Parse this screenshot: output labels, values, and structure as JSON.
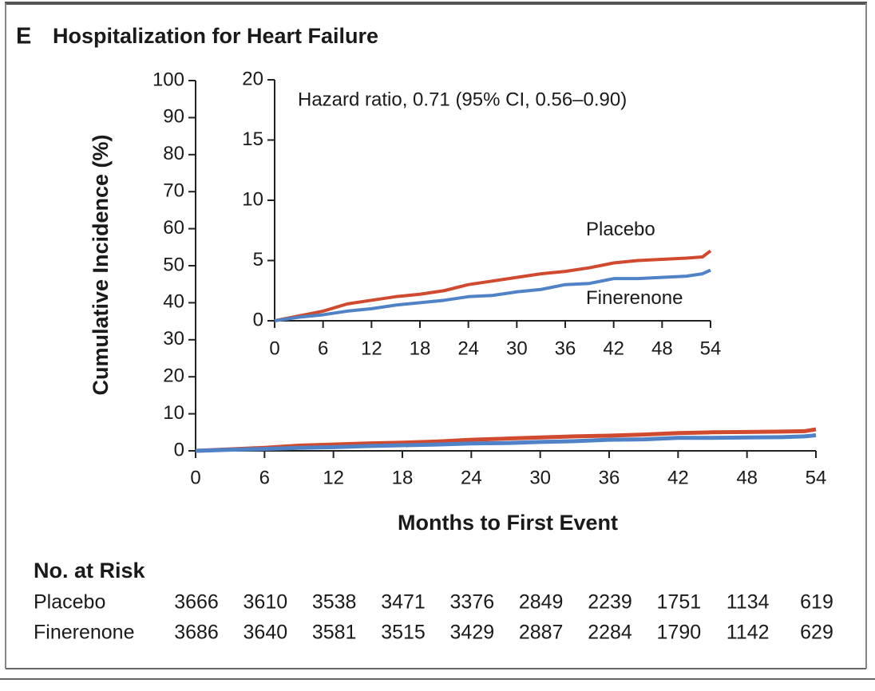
{
  "chart_data": [
    {
      "type": "line",
      "panel_label": "E",
      "title": "Hospitalization for Heart Failure",
      "xlabel": "Months to First Event",
      "ylabel": "Cumulative Incidence (%)",
      "xlim": [
        0,
        54
      ],
      "xticks": [
        0,
        6,
        12,
        18,
        24,
        30,
        36,
        42,
        48,
        54
      ],
      "ylim": [
        0,
        100
      ],
      "yticks": [
        0,
        10,
        20,
        30,
        40,
        50,
        60,
        70,
        80,
        90,
        100
      ],
      "x": [
        0,
        3,
        6,
        9,
        12,
        15,
        18,
        21,
        24,
        27,
        30,
        33,
        36,
        39,
        42,
        45,
        48,
        51,
        53,
        54
      ],
      "series": [
        {
          "color": "#cf4a2e",
          "values": [
            0,
            0.4,
            0.8,
            1.4,
            1.7,
            2.0,
            2.2,
            2.5,
            3.0,
            3.3,
            3.6,
            3.9,
            4.1,
            4.4,
            4.8,
            5.0,
            5.1,
            5.2,
            5.3,
            5.8
          ]
        },
        {
          "color": "#4f82c6",
          "values": [
            0,
            0.3,
            0.5,
            0.8,
            1.0,
            1.3,
            1.5,
            1.7,
            2.0,
            2.1,
            2.4,
            2.6,
            3.0,
            3.1,
            3.5,
            3.5,
            3.6,
            3.7,
            3.9,
            4.2
          ]
        }
      ]
    },
    {
      "type": "line",
      "annotation": "Hazard ratio, 0.71 (95% CI, 0.56–0.90)",
      "xlim": [
        0,
        54
      ],
      "xticks": [
        0,
        6,
        12,
        18,
        24,
        30,
        36,
        42,
        48,
        54
      ],
      "ylim": [
        0,
        20
      ],
      "yticks": [
        0,
        5,
        10,
        15,
        20
      ],
      "x": [
        0,
        3,
        6,
        9,
        12,
        15,
        18,
        21,
        24,
        27,
        30,
        33,
        36,
        39,
        42,
        45,
        48,
        51,
        53,
        54
      ],
      "series": [
        {
          "name": "Placebo",
          "color": "#cf4a2e",
          "values": [
            0,
            0.4,
            0.8,
            1.4,
            1.7,
            2.0,
            2.2,
            2.5,
            3.0,
            3.3,
            3.6,
            3.9,
            4.1,
            4.4,
            4.8,
            5.0,
            5.1,
            5.2,
            5.3,
            5.8
          ]
        },
        {
          "name": "Finerenone",
          "color": "#4f82c6",
          "values": [
            0,
            0.3,
            0.5,
            0.8,
            1.0,
            1.3,
            1.5,
            1.7,
            2.0,
            2.1,
            2.4,
            2.6,
            3.0,
            3.1,
            3.5,
            3.5,
            3.6,
            3.7,
            3.9,
            4.2
          ]
        }
      ]
    }
  ],
  "risk_table": {
    "title": "No. at Risk",
    "rows": [
      {
        "label": "Placebo",
        "values": [
          3666,
          3610,
          3538,
          3471,
          3376,
          2849,
          2239,
          1751,
          1134,
          619
        ]
      },
      {
        "label": "Finerenone",
        "values": [
          3686,
          3640,
          3581,
          3515,
          3429,
          2887,
          2284,
          1790,
          1142,
          629
        ]
      }
    ]
  }
}
